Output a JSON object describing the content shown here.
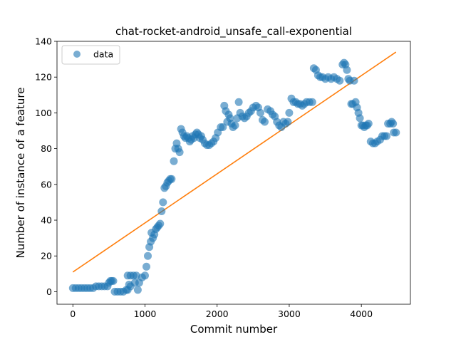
{
  "chart_data": {
    "type": "scatter",
    "title": "chat-rocket-android_unsafe_call-exponential",
    "xlabel": "Commit number",
    "ylabel": "Number of instance of a feature",
    "xlim": [
      -220,
      4680
    ],
    "ylim": [
      -7,
      140
    ],
    "xticks": [
      0,
      1000,
      2000,
      3000,
      4000
    ],
    "xtick_labels": [
      "0",
      "1000",
      "2000",
      "3000",
      "4000"
    ],
    "yticks": [
      0,
      20,
      40,
      60,
      80,
      100,
      120,
      140
    ],
    "ytick_labels": [
      "0",
      "20",
      "40",
      "60",
      "80",
      "100",
      "120",
      "140"
    ],
    "grid": false,
    "legend": {
      "position": "top-left",
      "entries": [
        "data"
      ]
    },
    "colors": {
      "data": "#1f77b4",
      "fit": "#ff7f0e"
    },
    "series": [
      {
        "name": "data",
        "kind": "scatter",
        "points": [
          [
            0,
            2
          ],
          [
            40,
            2
          ],
          [
            80,
            2
          ],
          [
            120,
            2
          ],
          [
            160,
            2
          ],
          [
            200,
            2
          ],
          [
            240,
            2
          ],
          [
            280,
            2
          ],
          [
            320,
            3
          ],
          [
            360,
            3
          ],
          [
            400,
            3
          ],
          [
            440,
            3
          ],
          [
            480,
            3
          ],
          [
            500,
            5
          ],
          [
            520,
            6
          ],
          [
            540,
            6
          ],
          [
            560,
            6
          ],
          [
            580,
            0
          ],
          [
            620,
            0
          ],
          [
            660,
            0
          ],
          [
            700,
            0
          ],
          [
            740,
            1
          ],
          [
            760,
            1
          ],
          [
            780,
            4
          ],
          [
            800,
            3
          ],
          [
            760,
            9
          ],
          [
            800,
            9
          ],
          [
            840,
            9
          ],
          [
            880,
            9
          ],
          [
            860,
            5
          ],
          [
            900,
            1
          ],
          [
            920,
            5
          ],
          [
            960,
            8
          ],
          [
            1000,
            9
          ],
          [
            1020,
            14
          ],
          [
            1040,
            20
          ],
          [
            1060,
            25
          ],
          [
            1080,
            28
          ],
          [
            1090,
            33
          ],
          [
            1110,
            30
          ],
          [
            1130,
            32
          ],
          [
            1150,
            35
          ],
          [
            1170,
            36
          ],
          [
            1190,
            37
          ],
          [
            1210,
            38
          ],
          [
            1230,
            45
          ],
          [
            1250,
            50
          ],
          [
            1270,
            58
          ],
          [
            1290,
            59
          ],
          [
            1310,
            61
          ],
          [
            1330,
            62
          ],
          [
            1350,
            63
          ],
          [
            1370,
            63
          ],
          [
            1400,
            73
          ],
          [
            1420,
            80
          ],
          [
            1440,
            83
          ],
          [
            1460,
            80
          ],
          [
            1480,
            78
          ],
          [
            1500,
            91
          ],
          [
            1520,
            89
          ],
          [
            1540,
            87
          ],
          [
            1560,
            86
          ],
          [
            1580,
            87
          ],
          [
            1600,
            86
          ],
          [
            1620,
            84
          ],
          [
            1640,
            85
          ],
          [
            1660,
            87
          ],
          [
            1680,
            86
          ],
          [
            1700,
            88
          ],
          [
            1720,
            89
          ],
          [
            1740,
            88
          ],
          [
            1760,
            86
          ],
          [
            1780,
            87
          ],
          [
            1800,
            85
          ],
          [
            1830,
            83
          ],
          [
            1860,
            82
          ],
          [
            1890,
            82
          ],
          [
            1920,
            83
          ],
          [
            1950,
            84
          ],
          [
            1980,
            86
          ],
          [
            2010,
            89
          ],
          [
            2050,
            92
          ],
          [
            2080,
            92
          ],
          [
            2100,
            104
          ],
          [
            2120,
            101
          ],
          [
            2140,
            95
          ],
          [
            2160,
            99
          ],
          [
            2180,
            97
          ],
          [
            2200,
            94
          ],
          [
            2220,
            92
          ],
          [
            2250,
            93
          ],
          [
            2280,
            97
          ],
          [
            2300,
            106
          ],
          [
            2320,
            100
          ],
          [
            2350,
            98
          ],
          [
            2380,
            97
          ],
          [
            2410,
            98
          ],
          [
            2440,
            100
          ],
          [
            2470,
            101
          ],
          [
            2500,
            103
          ],
          [
            2540,
            104
          ],
          [
            2570,
            103
          ],
          [
            2600,
            100
          ],
          [
            2630,
            96
          ],
          [
            2660,
            95
          ],
          [
            2700,
            102
          ],
          [
            2740,
            101
          ],
          [
            2770,
            99
          ],
          [
            2800,
            98
          ],
          [
            2830,
            95
          ],
          [
            2860,
            93
          ],
          [
            2890,
            92
          ],
          [
            2920,
            95
          ],
          [
            2950,
            94
          ],
          [
            2980,
            95
          ],
          [
            3000,
            100
          ],
          [
            3030,
            108
          ],
          [
            3060,
            106
          ],
          [
            3090,
            106
          ],
          [
            3120,
            105
          ],
          [
            3150,
            105
          ],
          [
            3180,
            104
          ],
          [
            3210,
            105
          ],
          [
            3240,
            106
          ],
          [
            3280,
            106
          ],
          [
            3320,
            106
          ],
          [
            3340,
            125
          ],
          [
            3370,
            124
          ],
          [
            3400,
            121
          ],
          [
            3430,
            120
          ],
          [
            3460,
            120
          ],
          [
            3500,
            119
          ],
          [
            3540,
            120
          ],
          [
            3580,
            119
          ],
          [
            3620,
            120
          ],
          [
            3660,
            119
          ],
          [
            3700,
            118
          ],
          [
            3740,
            127
          ],
          [
            3760,
            128
          ],
          [
            3780,
            127
          ],
          [
            3800,
            124
          ],
          [
            3820,
            119
          ],
          [
            3840,
            118
          ],
          [
            3860,
            105
          ],
          [
            3880,
            105
          ],
          [
            3900,
            118
          ],
          [
            3920,
            106
          ],
          [
            3940,
            103
          ],
          [
            3960,
            100
          ],
          [
            3980,
            97
          ],
          [
            4000,
            93
          ],
          [
            4020,
            93
          ],
          [
            4040,
            92
          ],
          [
            4060,
            93
          ],
          [
            4080,
            93
          ],
          [
            4100,
            94
          ],
          [
            4130,
            84
          ],
          [
            4160,
            83
          ],
          [
            4190,
            83
          ],
          [
            4220,
            84
          ],
          [
            4260,
            85
          ],
          [
            4290,
            87
          ],
          [
            4320,
            87
          ],
          [
            4350,
            87
          ],
          [
            4370,
            94
          ],
          [
            4400,
            94
          ],
          [
            4420,
            95
          ],
          [
            4440,
            94
          ],
          [
            4450,
            89
          ],
          [
            4480,
            89
          ]
        ]
      },
      {
        "name": "",
        "kind": "line",
        "points": [
          [
            0,
            11
          ],
          [
            4480,
            134
          ]
        ]
      }
    ]
  }
}
